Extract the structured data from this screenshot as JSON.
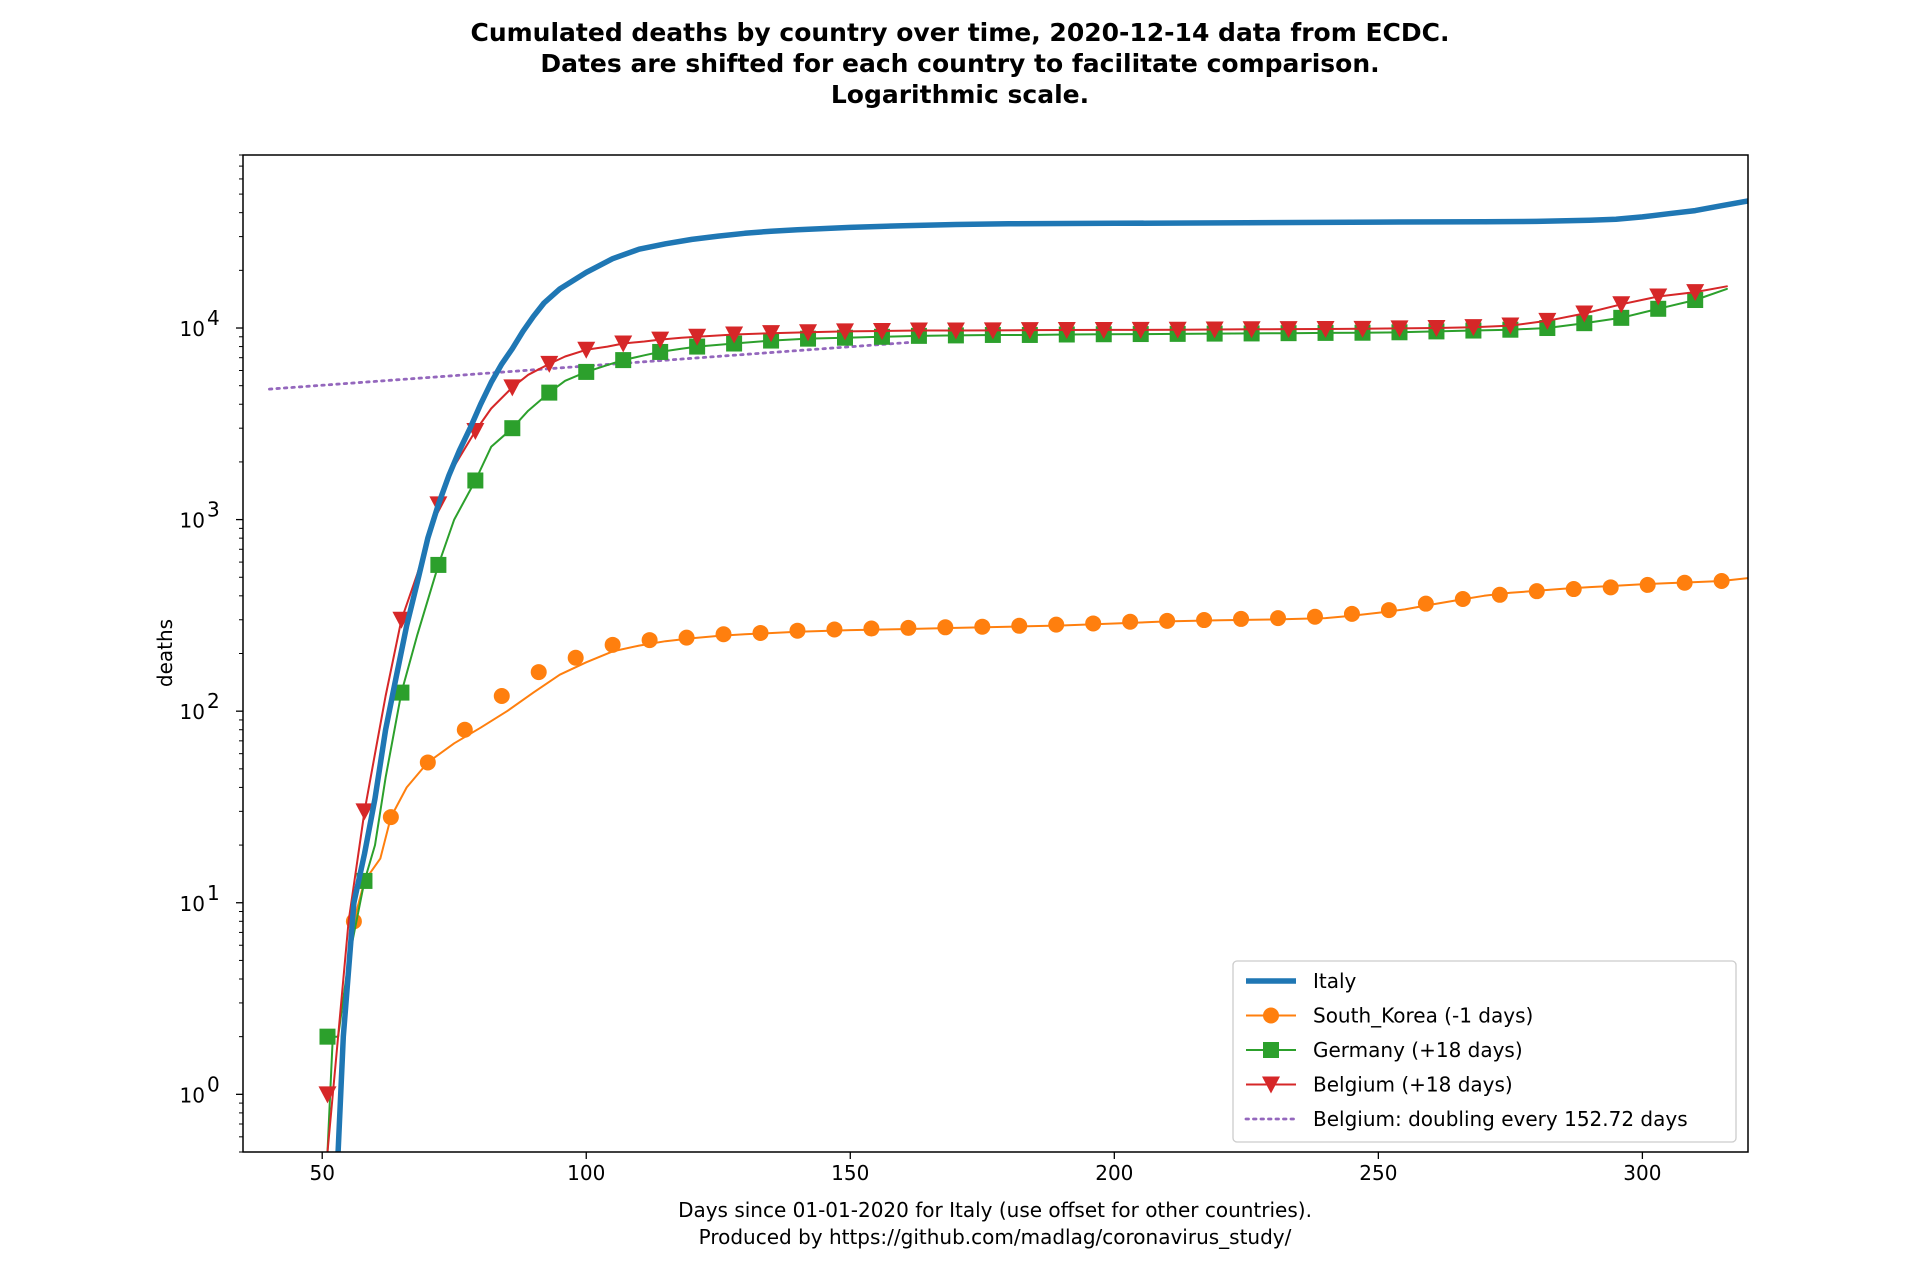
{
  "chart_data": {
    "type": "line",
    "title": [
      "Cumulated deaths by country over time, 2020-12-14 data from ECDC.",
      "Dates are shifted for each country to facilitate comparison.",
      "Logarithmic scale."
    ],
    "xlabel": [
      "Days since 01-01-2020 for Italy (use offset for other countries).",
      "Produced by https://github.com/madlag/coronavirus_study/"
    ],
    "ylabel": "deaths",
    "xlim": [
      35,
      320
    ],
    "ylim": [
      0.5,
      80000
    ],
    "yscale": "log",
    "grid": false,
    "legend_position": "lower-right",
    "x_ticks": [
      50,
      100,
      150,
      200,
      250,
      300
    ],
    "y_ticks": [
      {
        "value": 1,
        "base": "10",
        "exp": "0"
      },
      {
        "value": 10,
        "base": "10",
        "exp": "1"
      },
      {
        "value": 100,
        "base": "10",
        "exp": "2"
      },
      {
        "value": 1000,
        "base": "10",
        "exp": "3"
      },
      {
        "value": 10000,
        "base": "10",
        "exp": "4"
      }
    ],
    "series": [
      {
        "name": "Italy",
        "color": "#1f77b4",
        "line_style": "solid-thick",
        "marker": "none",
        "x": [
          53,
          54,
          56,
          58,
          60,
          62,
          64,
          66,
          68,
          70,
          72,
          74,
          76,
          78,
          80,
          82,
          84,
          86,
          88,
          90,
          92,
          95,
          100,
          105,
          110,
          115,
          120,
          125,
          130,
          135,
          140,
          150,
          160,
          170,
          180,
          200,
          225,
          250,
          270,
          280,
          290,
          295,
          300,
          305,
          310,
          315,
          320
        ],
        "y": [
          0.5,
          2,
          10,
          18,
          35,
          80,
          150,
          280,
          470,
          800,
          1200,
          1700,
          2300,
          3000,
          4000,
          5200,
          6500,
          7800,
          9600,
          11500,
          13500,
          16000,
          19500,
          23000,
          25800,
          27500,
          29000,
          30200,
          31200,
          32000,
          32600,
          33500,
          34200,
          34700,
          35000,
          35200,
          35400,
          35700,
          35900,
          36000,
          36500,
          37000,
          38000,
          39500,
          41000,
          43500,
          46000
        ]
      },
      {
        "name": "South_Korea (-1 days)",
        "color": "#ff7f0e",
        "line_style": "solid",
        "marker": "circle",
        "x": [
          53,
          54,
          56,
          58,
          61,
          63,
          66,
          70,
          75,
          80,
          85,
          90,
          95,
          100,
          105,
          110,
          115,
          120,
          125,
          130,
          140,
          150,
          160,
          170,
          180,
          190,
          200,
          210,
          220,
          230,
          240,
          245,
          250,
          255,
          260,
          265,
          270,
          275,
          280,
          285,
          290,
          295,
          300,
          305,
          310,
          315,
          320
        ],
        "y": [
          0.5,
          2,
          8,
          13,
          17,
          28,
          40,
          54,
          68,
          82,
          100,
          125,
          155,
          180,
          205,
          220,
          232,
          240,
          247,
          252,
          260,
          265,
          268,
          272,
          276,
          280,
          287,
          294,
          298,
          301,
          306,
          315,
          326,
          340,
          360,
          380,
          400,
          415,
          425,
          435,
          444,
          452,
          460,
          466,
          472,
          478,
          495
        ],
        "markers_x": [
          56,
          63,
          70,
          77,
          84,
          91,
          98,
          105,
          112,
          119,
          126,
          133,
          140,
          147,
          154,
          161,
          168,
          175,
          182,
          189,
          196,
          203,
          210,
          217,
          224,
          231,
          238,
          245,
          252,
          259,
          266,
          273,
          280,
          287,
          294,
          301,
          308,
          315
        ],
        "markers_y": [
          8,
          28,
          54,
          80,
          120,
          160,
          190,
          222,
          235,
          242,
          252,
          256,
          263,
          267,
          270,
          272,
          274,
          276,
          279,
          283,
          287,
          293,
          296,
          299,
          303,
          306,
          311,
          322,
          337,
          364,
          385,
          405,
          423,
          434,
          443,
          456,
          468,
          478
        ]
      },
      {
        "name": "Germany (+18 days)",
        "color": "#2ca02c",
        "line_style": "solid",
        "marker": "square",
        "x": [
          51,
          52,
          53,
          55,
          58,
          60,
          62,
          65,
          68,
          72,
          75,
          79,
          82,
          86,
          89,
          93,
          96,
          100,
          104,
          107,
          111,
          114,
          118,
          121,
          128,
          135,
          142,
          149,
          156,
          163,
          170,
          177,
          184,
          191,
          198,
          205,
          212,
          219,
          226,
          233,
          240,
          247,
          254,
          261,
          268,
          275,
          282,
          289,
          296,
          303,
          310,
          316
        ],
        "y": [
          0.5,
          2,
          2,
          5,
          13,
          20,
          45,
          125,
          250,
          580,
          1000,
          1600,
          2400,
          3000,
          3700,
          4600,
          5300,
          5900,
          6400,
          6800,
          7200,
          7500,
          7800,
          8000,
          8300,
          8600,
          8800,
          8900,
          9000,
          9100,
          9150,
          9200,
          9200,
          9250,
          9280,
          9300,
          9320,
          9350,
          9370,
          9400,
          9430,
          9450,
          9500,
          9600,
          9700,
          9800,
          10000,
          10600,
          11300,
          12600,
          14000,
          16000
        ],
        "markers_x": [
          51,
          58,
          65,
          72,
          79,
          86,
          93,
          100,
          107,
          114,
          121,
          128,
          135,
          142,
          149,
          156,
          163,
          170,
          177,
          184,
          191,
          198,
          205,
          212,
          219,
          226,
          233,
          240,
          247,
          254,
          261,
          268,
          275,
          282,
          289,
          296,
          303,
          310
        ],
        "markers_y": [
          2,
          13,
          125,
          580,
          1600,
          3000,
          4600,
          5900,
          6800,
          7500,
          8000,
          8300,
          8600,
          8800,
          8900,
          9000,
          9100,
          9150,
          9200,
          9200,
          9250,
          9280,
          9300,
          9320,
          9350,
          9370,
          9400,
          9430,
          9450,
          9500,
          9600,
          9700,
          9800,
          10000,
          10600,
          11300,
          12600,
          14000
        ]
      },
      {
        "name": "Belgium (+18 days)",
        "color": "#d62728",
        "line_style": "solid",
        "marker": "triangle-down",
        "x": [
          51,
          52,
          53,
          55,
          58,
          60,
          62,
          65,
          68,
          72,
          75,
          79,
          82,
          86,
          89,
          93,
          96,
          100,
          104,
          107,
          111,
          114,
          118,
          121,
          128,
          135,
          142,
          149,
          156,
          163,
          170,
          177,
          184,
          191,
          198,
          205,
          212,
          219,
          226,
          233,
          240,
          247,
          254,
          261,
          268,
          275,
          282,
          289,
          296,
          303,
          310,
          316
        ],
        "y": [
          0.5,
          1,
          2,
          8,
          30,
          60,
          120,
          300,
          520,
          1200,
          1900,
          2900,
          3800,
          4900,
          5700,
          6500,
          7100,
          7700,
          8000,
          8300,
          8500,
          8700,
          8900,
          9000,
          9250,
          9400,
          9500,
          9600,
          9650,
          9700,
          9700,
          9720,
          9750,
          9760,
          9770,
          9780,
          9800,
          9820,
          9850,
          9870,
          9880,
          9900,
          9950,
          10000,
          10100,
          10300,
          10900,
          11900,
          13300,
          14600,
          15400,
          16500
        ],
        "markers_x": [
          51,
          58,
          65,
          72,
          79,
          86,
          93,
          100,
          107,
          114,
          121,
          128,
          135,
          142,
          149,
          156,
          163,
          170,
          177,
          184,
          191,
          198,
          205,
          212,
          219,
          226,
          233,
          240,
          247,
          254,
          261,
          268,
          275,
          282,
          289,
          296,
          303,
          310
        ],
        "markers_y": [
          1,
          30,
          300,
          1200,
          2900,
          4900,
          6500,
          7700,
          8300,
          8700,
          9000,
          9250,
          9400,
          9500,
          9600,
          9650,
          9700,
          9700,
          9720,
          9750,
          9760,
          9770,
          9780,
          9800,
          9820,
          9850,
          9870,
          9880,
          9900,
          9950,
          10000,
          10100,
          10300,
          10900,
          11900,
          13300,
          14600,
          15400
        ]
      },
      {
        "name": "Belgium: doubling every 152.72 days",
        "color": "#9467bd",
        "line_style": "dotted",
        "marker": "none",
        "x": [
          40,
          161
        ],
        "y": [
          4800,
          8400
        ]
      }
    ]
  }
}
